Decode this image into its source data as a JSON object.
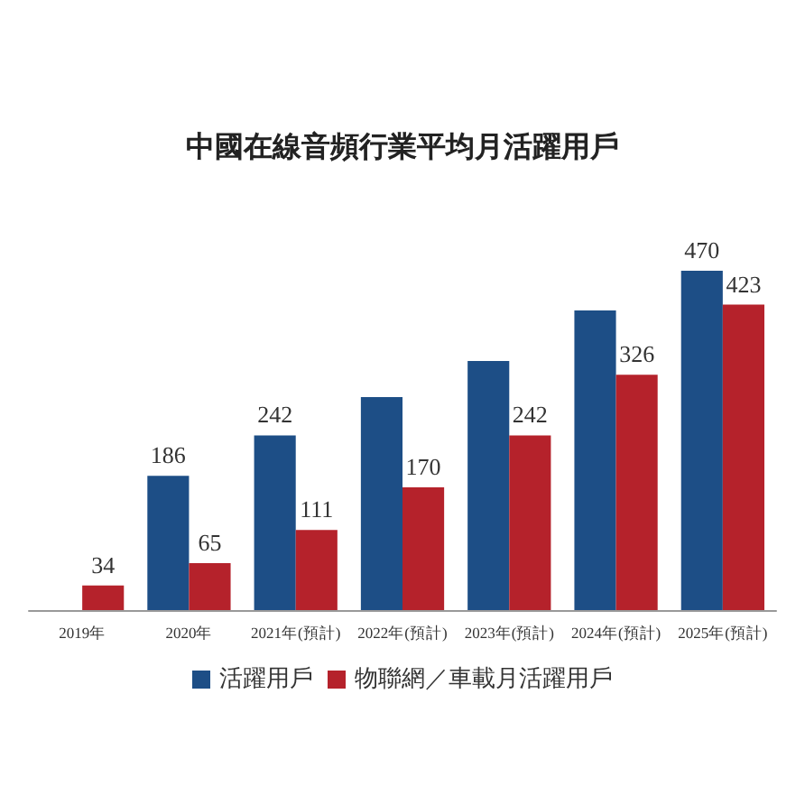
{
  "chart_data": {
    "type": "bar",
    "title": "中國在線音頻行業平均月活躍用戶",
    "categories": [
      "2019年",
      "2020年",
      "2021年(預計)",
      "2022年(預計)",
      "2023年(預計)",
      "2024年(預計)",
      "2025年(預計)"
    ],
    "series": [
      {
        "name": "活躍用戶",
        "color": "#1d4e86",
        "values": [
          null,
          186,
          242,
          295,
          345,
          415,
          470
        ],
        "value_labels": [
          null,
          "186",
          "242",
          null,
          null,
          null,
          "470"
        ]
      },
      {
        "name": "物聯網／車載月活躍用戶",
        "color": "#b5222b",
        "values": [
          34,
          65,
          111,
          170,
          242,
          326,
          423
        ],
        "value_labels": [
          "34",
          "65",
          "111",
          "170",
          "242",
          "326",
          "423"
        ]
      }
    ],
    "legend": "bottom"
  }
}
